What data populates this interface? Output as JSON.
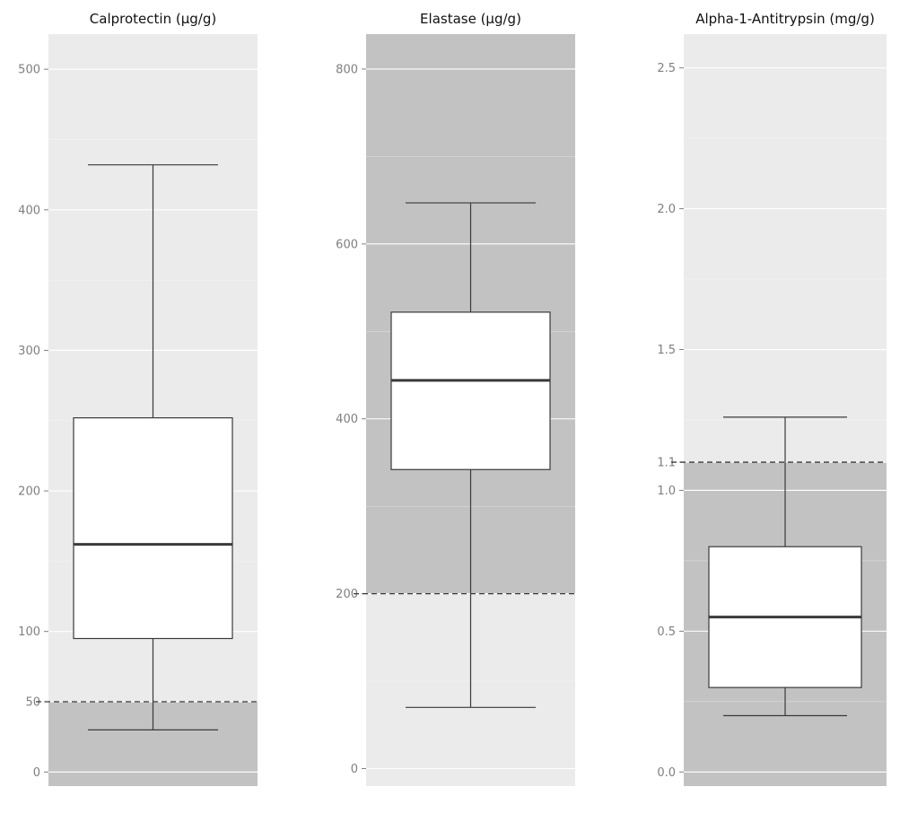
{
  "chart_data": [
    {
      "type": "box",
      "title": "Calprotectin (µg/g)",
      "ylim": [
        -10,
        525
      ],
      "ticks": [
        0,
        50,
        100,
        200,
        300,
        400,
        500
      ],
      "tick_labels": [
        "0",
        "50",
        "100",
        "200",
        "300",
        "400",
        "500"
      ],
      "minor_ticks": [
        150,
        250,
        350,
        450
      ],
      "reference_line": 50,
      "shaded_region": "below",
      "box": {
        "whisker_low": 30,
        "q1": 95,
        "median": 162,
        "q3": 252,
        "whisker_high": 432
      },
      "colors": {
        "panel": "#ebebeb",
        "shaded": "#c2c2c2"
      }
    },
    {
      "type": "box",
      "title": "Elastase (µg/g)",
      "ylim": [
        -20,
        840
      ],
      "ticks": [
        0,
        200,
        400,
        600,
        800
      ],
      "tick_labels": [
        "0",
        "200",
        "400",
        "600",
        "800"
      ],
      "minor_ticks": [
        100,
        300,
        500,
        700
      ],
      "reference_line": 200,
      "shaded_region": "above",
      "box": {
        "whisker_low": 70,
        "q1": 342,
        "median": 444,
        "q3": 522,
        "whisker_high": 647
      },
      "colors": {
        "panel": "#ebebeb",
        "shaded": "#c2c2c2"
      }
    },
    {
      "type": "box",
      "title": "Alpha-1-Antitrypsin (mg/g)",
      "ylim": [
        -0.05,
        2.62
      ],
      "ticks": [
        0.0,
        0.5,
        1.0,
        1.1,
        1.5,
        2.0,
        2.5
      ],
      "tick_labels": [
        "0.0",
        "0.5",
        "1.0",
        "1.1",
        "1.5",
        "2.0",
        "2.5"
      ],
      "minor_ticks": [
        0.25,
        0.75,
        1.25,
        1.75,
        2.25
      ],
      "reference_line": 1.1,
      "shaded_region": "below",
      "box": {
        "whisker_low": 0.2,
        "q1": 0.3,
        "median": 0.55,
        "q3": 0.8,
        "whisker_high": 1.26
      },
      "colors": {
        "panel": "#ebebeb",
        "shaded": "#c2c2c2"
      }
    }
  ]
}
